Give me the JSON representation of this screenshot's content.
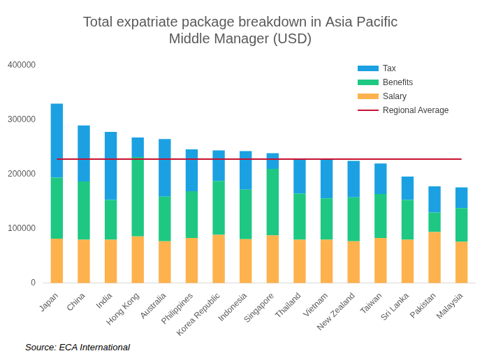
{
  "chart_data": {
    "type": "bar",
    "title": [
      "Total expatriate package breakdown in Asia Pacific",
      "Middle Manager (USD)"
    ],
    "source": "Source: ECA International",
    "categories": [
      "Japan",
      "China",
      "India",
      "Hong Kong",
      "Australia",
      "Philippines",
      "Korea Republic",
      "Indonesia",
      "Singapore",
      "Thailand",
      "Vietnam",
      "New Zealand",
      "Taiwan",
      "Sri Lanka",
      "Pakistan",
      "Malaysia"
    ],
    "series": [
      {
        "name": "Tax",
        "color": "#1ba1e2",
        "values": [
          136000,
          103000,
          125000,
          36000,
          106000,
          77000,
          56000,
          71000,
          29000,
          64000,
          72000,
          67000,
          56000,
          43000,
          48000,
          38000
        ]
      },
      {
        "name": "Benefits",
        "color": "#1ec882",
        "values": [
          112000,
          107000,
          73000,
          146000,
          82000,
          86000,
          99000,
          91000,
          122000,
          85000,
          76000,
          81000,
          81000,
          73000,
          36000,
          62000
        ]
      },
      {
        "name": "Salary",
        "color": "#fdb24e",
        "values": [
          82000,
          80000,
          80000,
          86000,
          77000,
          83000,
          89000,
          81000,
          88000,
          80000,
          80000,
          77000,
          83000,
          80000,
          94000,
          76000
        ]
      },
      {
        "name": "Regional Average",
        "type": "line",
        "color": "#c8102e",
        "values": [
          228000,
          228000,
          228000,
          228000,
          228000,
          228000,
          228000,
          228000,
          228000,
          228000,
          228000,
          228000,
          228000,
          228000,
          228000,
          228000
        ]
      }
    ],
    "stacked": true,
    "ylim": [
      0,
      400000
    ],
    "yticks": [
      0,
      100000,
      200000,
      300000,
      400000
    ],
    "grid": false,
    "legend": "top right"
  }
}
